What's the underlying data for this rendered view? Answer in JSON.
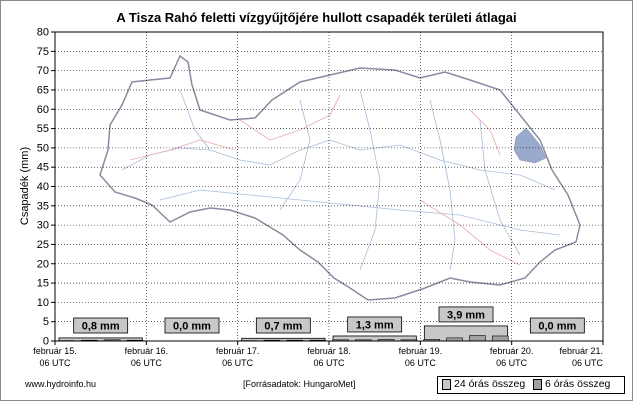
{
  "page": {
    "title": "A Tisza Rahó feletti vízgyűjtőjére hullott csapadék területi átlagai",
    "footer_site": "www.hydroinfo.hu",
    "footer_source": "[Forrásadatok: HungaroMet]"
  },
  "legend": {
    "item_24h": "24 órás összeg",
    "item_6h": "6 órás összeg"
  },
  "colors": {
    "bar_24h": "#c8c8c8",
    "bar_6h": "#a0a0a0",
    "label_box": "#c8c8c8",
    "grid": "#000000",
    "map_outline": "#8a8aa0",
    "map_rivers": "#a8bcd8",
    "map_borders": "#e8b0b8",
    "map_highlight": "#99aacc"
  },
  "chart_data": {
    "type": "bar",
    "title": "A Tisza Rahó feletti vízgyűjtőjére hullott csapadék területi átlagai",
    "ylabel": "Csapadék (mm)",
    "xlabel": "",
    "ylim": [
      0,
      80
    ],
    "ytick_step": 5,
    "grid": true,
    "legend_position": "bottom-right",
    "x_ticks": [
      [
        "február 15.",
        "06 UTC"
      ],
      [
        "február 16.",
        "06 UTC"
      ],
      [
        "február 17.",
        "06 UTC"
      ],
      [
        "február 18.",
        "06 UTC"
      ],
      [
        "február 19.",
        "06 UTC"
      ],
      [
        "február 20.",
        "06 UTC"
      ],
      [
        "február 21.",
        "06 UTC"
      ]
    ],
    "daily_24h": [
      {
        "period": "február 15. 06 UTC – február 16. 06 UTC",
        "value": 0.8,
        "label": "0,8 mm"
      },
      {
        "period": "február 16. 06 UTC – február 17. 06 UTC",
        "value": 0.0,
        "label": "0,0 mm"
      },
      {
        "period": "február 17. 06 UTC – február 18. 06 UTC",
        "value": 0.7,
        "label": "0,7 mm"
      },
      {
        "period": "február 18. 06 UTC – február 19. 06 UTC",
        "value": 1.3,
        "label": "1,3 mm"
      },
      {
        "period": "február 19. 06 UTC – február 20. 06 UTC",
        "value": 3.9,
        "label": "3,9 mm"
      },
      {
        "period": "február 20. 06 UTC – február 21. 06 UTC",
        "value": 0.0,
        "label": "0,0 mm"
      }
    ],
    "six_hourly": [
      0.1,
      0.2,
      0.3,
      0.2,
      0.0,
      0.0,
      0.0,
      0.0,
      0.1,
      0.2,
      0.2,
      0.2,
      0.3,
      0.3,
      0.4,
      0.3,
      0.4,
      0.8,
      1.4,
      1.3,
      0.0,
      0.0,
      0.0,
      0.0
    ]
  }
}
